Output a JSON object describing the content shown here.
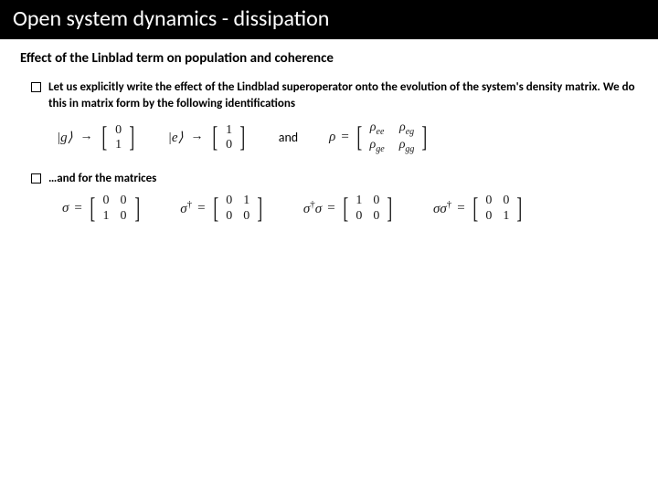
{
  "title": "Open system dynamics - dissipation",
  "subtitle": "Effect of the Linblad term on population and coherence",
  "bullets": {
    "b1": "Let us explicitly write the effect of the Lindblad superoperator onto the evolution of the system's density matrix. We do this in matrix form by the following identifications",
    "b2": "…and for the matrices"
  },
  "eq1": {
    "ket_g": "|g⟩",
    "ket_e": "|e⟩",
    "arrow": "→",
    "g_vec": [
      "0",
      "1"
    ],
    "e_vec": [
      "1",
      "0"
    ],
    "and": "and",
    "rho_sym": "ρ",
    "eq": "=",
    "rho_mat": [
      [
        "ρ",
        "ee",
        "ρ",
        "eg"
      ],
      [
        "ρ",
        "ge",
        "ρ",
        "gg"
      ]
    ]
  },
  "eq2": {
    "sigma": "σ",
    "dagger": "†",
    "eq": "=",
    "m_sigma": [
      [
        "0",
        "0"
      ],
      [
        "1",
        "0"
      ]
    ],
    "m_sigma_d": [
      [
        "0",
        "1"
      ],
      [
        "0",
        "0"
      ]
    ],
    "m_sds": [
      [
        "1",
        "0"
      ],
      [
        "0",
        "0"
      ]
    ],
    "m_ssd": [
      [
        "0",
        "0"
      ],
      [
        "0",
        "1"
      ]
    ]
  },
  "style": {
    "title_bg": "#000000",
    "title_color": "#ffffff",
    "title_fontsize": 24,
    "subtitle_fontsize": 15,
    "body_fontsize": 13,
    "eq_fontsize": 15,
    "page_bg": "#ffffff"
  }
}
